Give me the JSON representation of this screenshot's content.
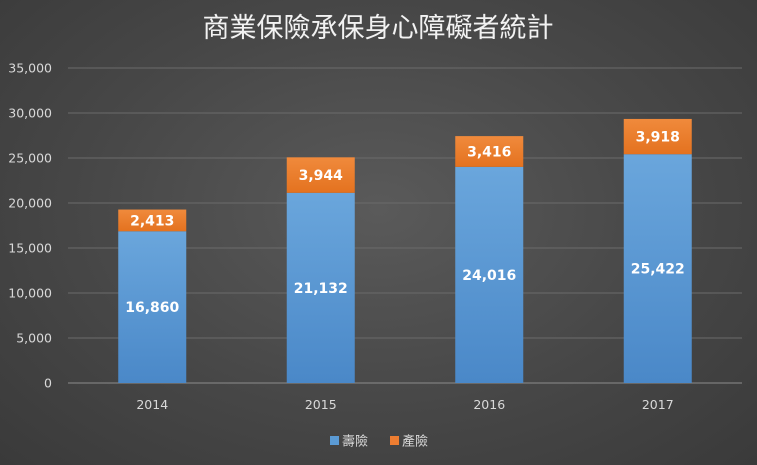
{
  "chart_data": {
    "type": "bar",
    "stacked": true,
    "title": "商業保險承保身心障礙者統計",
    "categories": [
      "2014",
      "2015",
      "2016",
      "2017"
    ],
    "series": [
      {
        "name": "壽險",
        "color": "#5b9bd5",
        "values": [
          16860,
          21132,
          24016,
          25422
        ]
      },
      {
        "name": "產險",
        "color": "#ed7d31",
        "values": [
          2413,
          3944,
          3416,
          3918
        ]
      }
    ],
    "data_labels": [
      [
        "16,860",
        "21,132",
        "24,016",
        "25,422"
      ],
      [
        "2,413",
        "3,944",
        "3,416",
        "3,918"
      ]
    ],
    "y_ticks": [
      "0",
      "5,000",
      "10,000",
      "15,000",
      "20,000",
      "25,000",
      "30,000",
      "35,000"
    ],
    "ylim": [
      0,
      35000
    ],
    "grid": true,
    "legend_position": "bottom"
  }
}
